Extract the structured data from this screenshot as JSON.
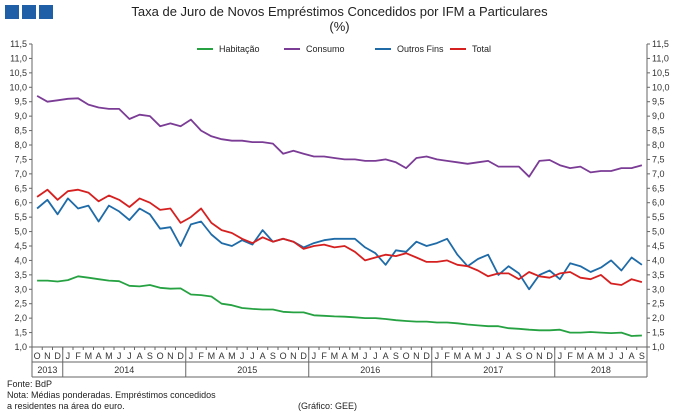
{
  "header": {
    "title_line1": "Taxa de Juro de Novos Empréstimos Concedidos por IFM a Particulares",
    "title_line2": "(%)"
  },
  "logo": {
    "icon": "bdp-logo-icon",
    "color": "#1f5fa8"
  },
  "footnotes": {
    "source": "Fonte: BdP",
    "note_line1": "Nota: Médias ponderadas. Empréstimos concedidos",
    "note_line2": "a residentes na área do euro.",
    "credit": "(Gráfico: GEE)"
  },
  "chart_data": {
    "type": "line",
    "title": "Taxa de Juro de Novos Empréstimos Concedidos por IFM a Particulares (%)",
    "xlabel": "",
    "ylabel": "",
    "ylim": [
      1.0,
      11.5
    ],
    "ytick_step": 0.5,
    "ytick_labels": [
      "1,0",
      "1,5",
      "2,0",
      "2,5",
      "3,0",
      "3,5",
      "4,0",
      "4,5",
      "5,0",
      "5,5",
      "6,0",
      "6,5",
      "7,0",
      "7,5",
      "8,0",
      "8,5",
      "9,0",
      "9,5",
      "10,0",
      "10,5",
      "11,0",
      "11,5"
    ],
    "grid": false,
    "legend_position": "top",
    "month_labels": [
      "O",
      "N",
      "D",
      "J",
      "F",
      "M",
      "A",
      "M",
      "J",
      "J",
      "A",
      "S",
      "O",
      "N",
      "D",
      "J",
      "F",
      "M",
      "A",
      "M",
      "J",
      "J",
      "A",
      "S",
      "O",
      "N",
      "D",
      "J",
      "F",
      "M",
      "A",
      "M",
      "J",
      "J",
      "A",
      "S",
      "O",
      "N",
      "D",
      "J",
      "F",
      "M",
      "A",
      "M",
      "J",
      "J",
      "A",
      "S",
      "O",
      "N",
      "D",
      "J",
      "F",
      "M",
      "A",
      "M",
      "J",
      "J",
      "A",
      "S"
    ],
    "year_labels": [
      {
        "label": "2013",
        "start": 0,
        "end": 2
      },
      {
        "label": "2014",
        "start": 3,
        "end": 14
      },
      {
        "label": "2015",
        "start": 15,
        "end": 26
      },
      {
        "label": "2016",
        "start": 27,
        "end": 38
      },
      {
        "label": "2017",
        "start": 39,
        "end": 50
      },
      {
        "label": "2018",
        "start": 51,
        "end": 59
      }
    ],
    "series": [
      {
        "name": "Habitação",
        "color": "#27a243",
        "values": [
          3.3,
          3.3,
          3.27,
          3.32,
          3.45,
          3.4,
          3.35,
          3.3,
          3.28,
          3.12,
          3.1,
          3.15,
          3.05,
          3.02,
          3.03,
          2.82,
          2.8,
          2.75,
          2.5,
          2.45,
          2.35,
          2.32,
          2.3,
          2.3,
          2.22,
          2.2,
          2.2,
          2.1,
          2.08,
          2.06,
          2.05,
          2.03,
          2.0,
          2.0,
          1.97,
          1.93,
          1.9,
          1.88,
          1.88,
          1.85,
          1.85,
          1.82,
          1.78,
          1.75,
          1.72,
          1.72,
          1.65,
          1.63,
          1.6,
          1.58,
          1.58,
          1.6,
          1.5,
          1.5,
          1.52,
          1.5,
          1.48,
          1.5,
          1.38,
          1.4
        ]
      },
      {
        "name": "Consumo",
        "color": "#7b3c96",
        "values": [
          9.7,
          9.5,
          9.55,
          9.6,
          9.62,
          9.4,
          9.3,
          9.25,
          9.25,
          8.9,
          9.05,
          9.0,
          8.65,
          8.75,
          8.65,
          8.88,
          8.5,
          8.3,
          8.2,
          8.15,
          8.15,
          8.1,
          8.1,
          8.05,
          7.7,
          7.8,
          7.7,
          7.6,
          7.6,
          7.55,
          7.5,
          7.5,
          7.45,
          7.45,
          7.5,
          7.4,
          7.2,
          7.55,
          7.6,
          7.5,
          7.45,
          7.4,
          7.35,
          7.4,
          7.45,
          7.25,
          7.25,
          7.25,
          6.9,
          7.45,
          7.48,
          7.3,
          7.2,
          7.25,
          7.05,
          7.1,
          7.1,
          7.2,
          7.2,
          7.3
        ]
      },
      {
        "name": "Outros Fins",
        "color": "#1f6ba8",
        "values": [
          5.8,
          6.1,
          5.6,
          6.15,
          5.8,
          5.9,
          5.35,
          5.9,
          5.7,
          5.4,
          5.8,
          5.6,
          5.1,
          5.15,
          4.5,
          5.25,
          5.35,
          4.9,
          4.6,
          4.5,
          4.7,
          4.55,
          5.05,
          4.65,
          4.75,
          4.65,
          4.45,
          4.6,
          4.7,
          4.75,
          4.75,
          4.75,
          4.45,
          4.25,
          3.85,
          4.35,
          4.3,
          4.65,
          4.5,
          4.6,
          4.75,
          4.2,
          3.8,
          4.05,
          4.2,
          3.5,
          3.8,
          3.55,
          3.0,
          3.5,
          3.65,
          3.35,
          3.9,
          3.8,
          3.6,
          3.75,
          4.0,
          3.65,
          4.1,
          3.85
        ]
      },
      {
        "name": "Total",
        "color": "#d62020",
        "values": [
          6.2,
          6.45,
          6.1,
          6.4,
          6.45,
          6.35,
          6.05,
          6.25,
          6.1,
          5.85,
          6.15,
          6.0,
          5.75,
          5.8,
          5.3,
          5.5,
          5.8,
          5.3,
          5.05,
          4.95,
          4.75,
          4.6,
          4.8,
          4.65,
          4.75,
          4.65,
          4.4,
          4.5,
          4.55,
          4.45,
          4.5,
          4.3,
          4.0,
          4.1,
          4.2,
          4.15,
          4.25,
          4.1,
          3.95,
          3.95,
          4.0,
          3.85,
          3.8,
          3.65,
          3.45,
          3.55,
          3.55,
          3.35,
          3.6,
          3.45,
          3.4,
          3.55,
          3.6,
          3.4,
          3.35,
          3.5,
          3.2,
          3.15,
          3.35,
          3.25
        ]
      }
    ]
  }
}
